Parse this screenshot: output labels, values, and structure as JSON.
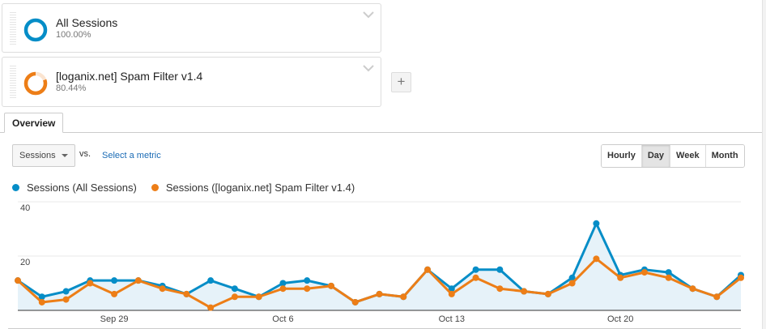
{
  "segments": [
    {
      "name": "All Sessions",
      "percent": "100.00%",
      "color": "#058dc7",
      "fraction": 1.0
    },
    {
      "name": "[loganix.net] Spam Filter v1.4",
      "percent": "80.44%",
      "color": "#ed7e17",
      "fraction": 0.8044
    }
  ],
  "add_segment_label": "+",
  "tabs": [
    {
      "label": "Overview"
    }
  ],
  "metric": {
    "selected": "Sessions",
    "vs_label": "vs.",
    "select_metric_link": "Select a metric"
  },
  "period_buttons": [
    {
      "label": "Hourly",
      "active": false
    },
    {
      "label": "Day",
      "active": true
    },
    {
      "label": "Week",
      "active": false
    },
    {
      "label": "Month",
      "active": false
    }
  ],
  "legend": [
    {
      "label": "Sessions (All Sessions)",
      "color": "#058dc7"
    },
    {
      "label": "Sessions ([loganix.net] Spam Filter v1.4)",
      "color": "#ed7e17"
    }
  ],
  "chart_data": {
    "type": "line",
    "title": "",
    "xlabel": "",
    "ylabel": "Sessions",
    "ylim": [
      0,
      40
    ],
    "yticks": [
      20,
      40
    ],
    "grid": true,
    "area_fill_first_series": true,
    "x_tick_labels": [
      "Sep 29",
      "Oct 6",
      "Oct 13",
      "Oct 20"
    ],
    "x": [
      "Sep 25",
      "Sep 26",
      "Sep 27",
      "Sep 28",
      "Sep 29",
      "Sep 30",
      "Oct 1",
      "Oct 2",
      "Oct 3",
      "Oct 4",
      "Oct 5",
      "Oct 6",
      "Oct 7",
      "Oct 8",
      "Oct 9",
      "Oct 10",
      "Oct 11",
      "Oct 12",
      "Oct 13",
      "Oct 14",
      "Oct 15",
      "Oct 16",
      "Oct 17",
      "Oct 18",
      "Oct 19",
      "Oct 20",
      "Oct 21",
      "Oct 22",
      "Oct 23",
      "Oct 24",
      "Oct 25"
    ],
    "series": [
      {
        "name": "Sessions (All Sessions)",
        "color": "#058dc7",
        "values": [
          11,
          5,
          7,
          11,
          11,
          11,
          9,
          6,
          11,
          8,
          5,
          10,
          11,
          9,
          3,
          6,
          5,
          15,
          8,
          15,
          15,
          7,
          6,
          12,
          32,
          13,
          15,
          14,
          8,
          5,
          13
        ]
      },
      {
        "name": "Sessions ([loganix.net] Spam Filter v1.4)",
        "color": "#ed7e17",
        "values": [
          11,
          3,
          4,
          10,
          6,
          11,
          8,
          6,
          1,
          5,
          5,
          8,
          8,
          9,
          3,
          6,
          5,
          15,
          6,
          12,
          8,
          7,
          6,
          10,
          19,
          12,
          14,
          12,
          8,
          5,
          12
        ]
      }
    ],
    "legend_position": "top-left"
  }
}
